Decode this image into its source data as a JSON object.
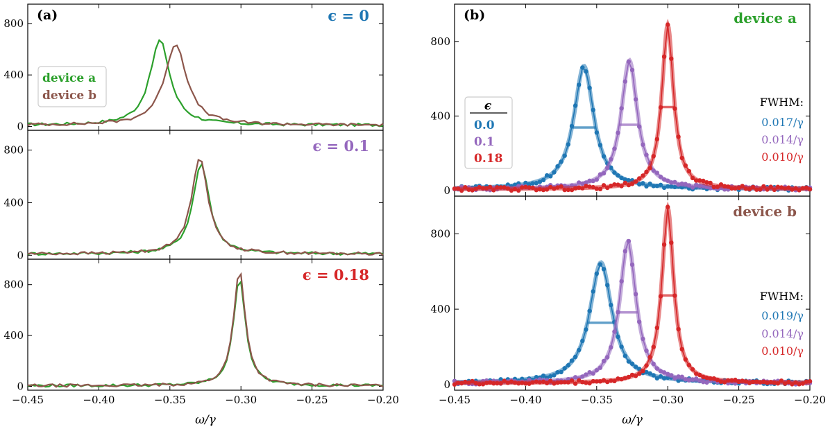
{
  "colors": {
    "device_a": "#2ca02c",
    "device_b": "#8c564b",
    "eps0": "#1f77b4",
    "eps01": "#9467bd",
    "eps018": "#d62728"
  },
  "xlabel": "ω/γ",
  "xticks": [
    "−0.45",
    "−0.40",
    "−0.35",
    "−0.30",
    "−0.25",
    "−0.20"
  ],
  "chart_data": [
    {
      "panel": "(a)",
      "type": "line",
      "xlim": [
        -0.45,
        -0.2
      ],
      "subplots": [
        {
          "title": "ϵ = 0",
          "ylim": [
            -30,
            950
          ],
          "yticks": [
            "0",
            "400",
            "800"
          ],
          "legend": [
            "device a",
            "device b"
          ],
          "series": [
            {
              "name": "device a",
              "peak_x": -0.357,
              "amplitude": 660,
              "width": 0.0085,
              "baseline": 10
            },
            {
              "name": "device b",
              "peak_x": -0.346,
              "amplitude": 630,
              "width": 0.0095,
              "baseline": 10
            }
          ]
        },
        {
          "title": "ϵ = 0.1",
          "ylim": [
            -30,
            950
          ],
          "yticks": [
            "0",
            "400",
            "800"
          ],
          "series": [
            {
              "name": "device a",
              "peak_x": -0.328,
              "amplitude": 690,
              "width": 0.007,
              "baseline": 10
            },
            {
              "name": "device b",
              "peak_x": -0.329,
              "amplitude": 740,
              "width": 0.007,
              "baseline": 10
            }
          ]
        },
        {
          "title": "ϵ = 0.18",
          "ylim": [
            -30,
            1000
          ],
          "yticks": [
            "0",
            "400",
            "800"
          ],
          "series": [
            {
              "name": "device a",
              "peak_x": -0.301,
              "amplitude": 860,
              "width": 0.005,
              "baseline": 5
            },
            {
              "name": "device b",
              "peak_x": -0.301,
              "amplitude": 910,
              "width": 0.005,
              "baseline": 5
            }
          ]
        }
      ]
    },
    {
      "panel": "(b)",
      "type": "scatter",
      "xlim": [
        -0.45,
        -0.2
      ],
      "legend_title": "ϵ",
      "legend": [
        "0.0",
        "0.1",
        "0.18"
      ],
      "subplots": [
        {
          "title": "device a",
          "ylim": [
            -30,
            1000
          ],
          "yticks": [
            "0",
            "400",
            "800"
          ],
          "fwhm_label": "FWHM:",
          "series": [
            {
              "epsilon": "0.0",
              "peak_x": -0.359,
              "amplitude": 660,
              "fwhm": "0.017/γ",
              "fwhm_val": 0.017
            },
            {
              "epsilon": "0.1",
              "peak_x": -0.327,
              "amplitude": 690,
              "fwhm": "0.014/γ",
              "fwhm_val": 0.014
            },
            {
              "epsilon": "0.18",
              "peak_x": -0.3,
              "amplitude": 880,
              "fwhm": "0.010/γ",
              "fwhm_val": 0.01
            }
          ]
        },
        {
          "title": "device b",
          "ylim": [
            -30,
            1000
          ],
          "yticks": [
            "0",
            "400",
            "800"
          ],
          "fwhm_label": "FWHM:",
          "series": [
            {
              "epsilon": "0.0",
              "peak_x": -0.347,
              "amplitude": 640,
              "fwhm": "0.019/γ",
              "fwhm_val": 0.019
            },
            {
              "epsilon": "0.1",
              "peak_x": -0.328,
              "amplitude": 750,
              "fwhm": "0.014/γ",
              "fwhm_val": 0.014
            },
            {
              "epsilon": "0.18",
              "peak_x": -0.3,
              "amplitude": 930,
              "fwhm": "0.010/γ",
              "fwhm_val": 0.01
            }
          ]
        }
      ]
    }
  ],
  "labels": {
    "panel_a": "(a)",
    "panel_b": "(b)",
    "eps_a1": "ϵ = 0",
    "eps_a2": "ϵ = 0.1",
    "eps_a3": "ϵ = 0.18",
    "leg_a1": "device a",
    "leg_a2": "device b",
    "dev_b1": "device a",
    "dev_b2": "device b",
    "leg_title": "ϵ",
    "leg_b1": "0.0",
    "leg_b2": "0.1",
    "leg_b3": "0.18",
    "fwhm_hdr1": "FWHM:",
    "fwhm_a0": "0.017/γ",
    "fwhm_a1": "0.014/γ",
    "fwhm_a2": "0.010/γ",
    "fwhm_hdr2": "FWHM:",
    "fwhm_b0": "0.019/γ",
    "fwhm_b1": "0.014/γ",
    "fwhm_b2": "0.010/γ"
  }
}
